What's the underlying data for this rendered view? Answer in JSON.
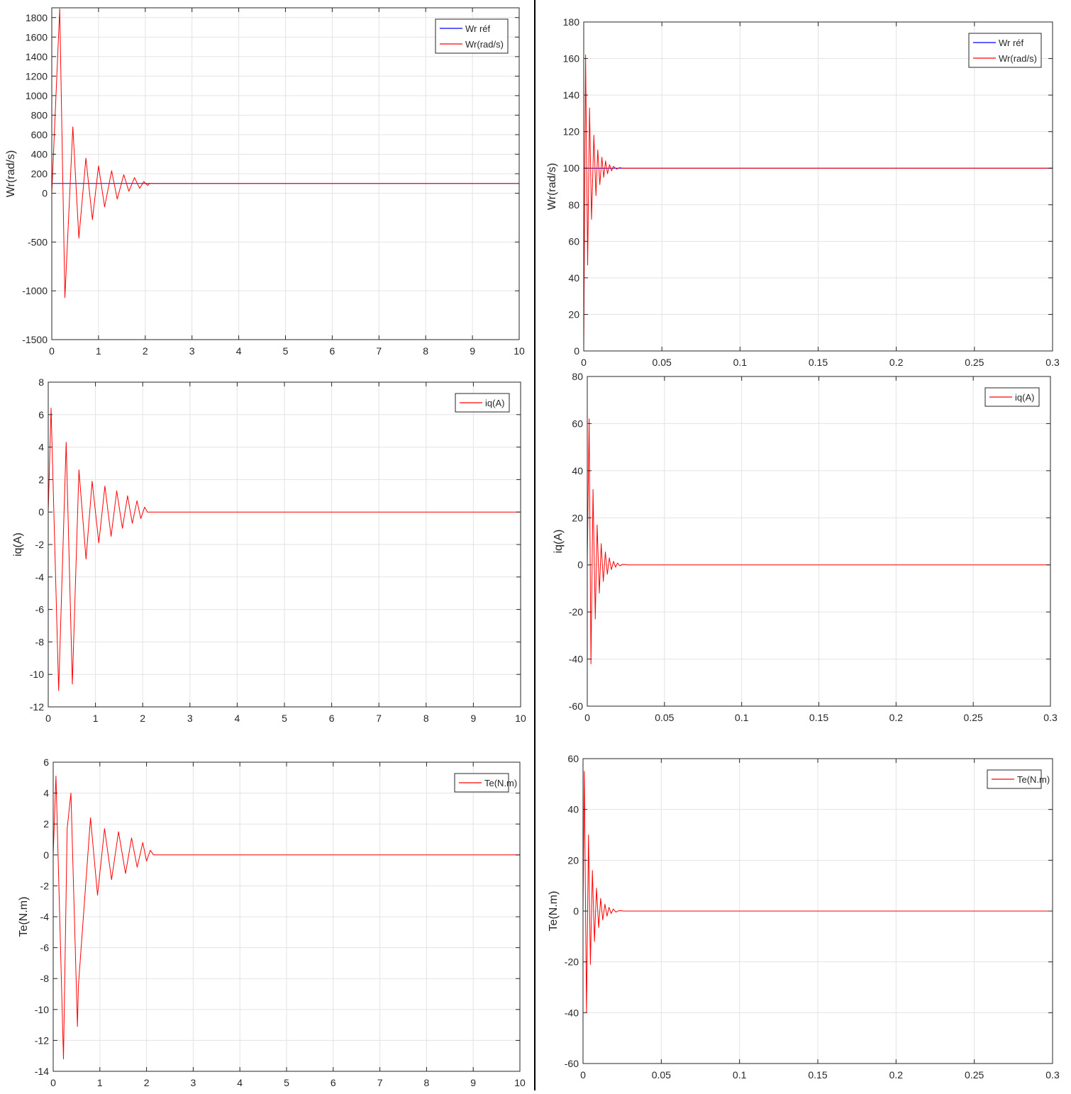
{
  "chart_data": [
    {
      "type": "line",
      "panel": "top-left",
      "ylabel": "Wr(rad/s)",
      "xlabel": "",
      "xlim": [
        0,
        10
      ],
      "ylim": [
        -1500,
        1900
      ],
      "xticks": [
        0,
        1,
        2,
        3,
        4,
        5,
        6,
        7,
        8,
        9,
        10
      ],
      "xtick_labels": [
        "0",
        "1",
        "2",
        "3",
        "4",
        "5",
        "6",
        "7",
        "8",
        "9",
        "10"
      ],
      "yticks": [
        -1500,
        -1000,
        -500,
        0,
        200,
        400,
        600,
        800,
        1000,
        1200,
        1400,
        1600,
        1800
      ],
      "ytick_labels": [
        "-1500",
        "-1000",
        "-500",
        "0",
        "200",
        "400",
        "600",
        "800",
        "1000",
        "1200",
        "1400",
        "1600",
        "1800"
      ],
      "grid": true,
      "legend_position": "top-right",
      "series": [
        {
          "name": "Wr réf",
          "color": "#0000ff",
          "x": [
            0,
            10
          ],
          "y": [
            100,
            100
          ]
        },
        {
          "name": "Wr(rad/s)",
          "color": "#ff0000",
          "x": [
            0,
            0.17,
            0.28,
            0.45,
            0.58,
            0.73,
            0.87,
            1.0,
            1.13,
            1.28,
            1.4,
            1.54,
            1.65,
            1.77,
            1.88,
            1.97,
            2.05,
            2.1,
            10
          ],
          "y": [
            0,
            1890,
            -1070,
            680,
            -460,
            360,
            -270,
            280,
            -140,
            230,
            -60,
            190,
            20,
            160,
            50,
            120,
            80,
            100,
            100
          ]
        }
      ]
    },
    {
      "type": "line",
      "panel": "top-right",
      "ylabel": "Wr(rad/s)",
      "xlabel": "",
      "xlim": [
        0,
        0.3
      ],
      "ylim": [
        0,
        180
      ],
      "xticks": [
        0,
        0.05,
        0.1,
        0.15,
        0.2,
        0.25,
        0.3
      ],
      "xtick_labels": [
        "0",
        "0.05",
        "0.1",
        "0.15",
        "0.2",
        "0.25",
        "0.3"
      ],
      "yticks": [
        0,
        20,
        40,
        60,
        80,
        100,
        120,
        140,
        160,
        180
      ],
      "ytick_labels": [
        "0",
        "20",
        "40",
        "60",
        "80",
        "100",
        "120",
        "140",
        "160",
        "180"
      ],
      "grid": true,
      "legend_position": "top-right",
      "series": [
        {
          "name": "Wr réf",
          "color": "#0000ff",
          "x": [
            0,
            0.3
          ],
          "y": [
            100,
            100
          ]
        },
        {
          "name": "Wr(rad/s)",
          "color": "#ff0000",
          "x": [
            0,
            0.0012,
            0.0025,
            0.0037,
            0.005,
            0.0065,
            0.0078,
            0.009,
            0.0103,
            0.0116,
            0.0128,
            0.014,
            0.0152,
            0.0165,
            0.0178,
            0.019,
            0.021,
            0.023,
            0.025,
            0.3
          ],
          "y": [
            0,
            162,
            47,
            133,
            72,
            118,
            85,
            110,
            91,
            106,
            95,
            104,
            97,
            102,
            98.5,
            101,
            99.5,
            100.3,
            100,
            100
          ]
        }
      ]
    },
    {
      "type": "line",
      "panel": "middle-left",
      "ylabel": "iq(A)",
      "xlabel": "",
      "xlim": [
        0,
        10
      ],
      "ylim": [
        -12,
        8
      ],
      "xticks": [
        0,
        1,
        2,
        3,
        4,
        5,
        6,
        7,
        8,
        9,
        10
      ],
      "xtick_labels": [
        "0",
        "1",
        "2",
        "3",
        "4",
        "5",
        "6",
        "7",
        "8",
        "9",
        "10"
      ],
      "yticks": [
        -12,
        -10,
        -8,
        -6,
        -4,
        -2,
        0,
        2,
        4,
        6,
        8
      ],
      "ytick_labels": [
        "-12",
        "-10",
        "-8",
        "-6",
        "-4",
        "-2",
        "0",
        "2",
        "4",
        "6",
        "8"
      ],
      "grid": true,
      "legend_position": "top-right",
      "series": [
        {
          "name": "iq(A)",
          "color": "#ff0000",
          "x": [
            0,
            0.06,
            0.22,
            0.38,
            0.51,
            0.65,
            0.8,
            0.93,
            1.07,
            1.2,
            1.33,
            1.45,
            1.57,
            1.68,
            1.78,
            1.88,
            1.96,
            2.04,
            2.1,
            10
          ],
          "y": [
            0,
            6.4,
            -11,
            4.3,
            -10.6,
            2.6,
            -2.9,
            1.9,
            -1.9,
            1.6,
            -1.5,
            1.3,
            -1.0,
            1.0,
            -0.7,
            0.7,
            -0.4,
            0.3,
            0,
            0
          ]
        }
      ]
    },
    {
      "type": "line",
      "panel": "middle-right",
      "ylabel": "iq(A)",
      "xlabel": "",
      "xlim": [
        0,
        0.3
      ],
      "ylim": [
        -60,
        80
      ],
      "xticks": [
        0,
        0.05,
        0.1,
        0.15,
        0.2,
        0.25,
        0.3
      ],
      "xtick_labels": [
        "0",
        "0.05",
        "0.1",
        "0.15",
        "0.2",
        "0.25",
        "0.3"
      ],
      "yticks": [
        -60,
        -40,
        -20,
        0,
        20,
        40,
        60,
        80
      ],
      "ytick_labels": [
        "-60",
        "-40",
        "-20",
        "0",
        "20",
        "40",
        "60",
        "80"
      ],
      "grid": true,
      "legend_position": "top-right",
      "series": [
        {
          "name": "iq(A)",
          "color": "#ff0000",
          "x": [
            0,
            0.0012,
            0.0024,
            0.0037,
            0.0052,
            0.0064,
            0.0078,
            0.009,
            0.0104,
            0.0117,
            0.013,
            0.0143,
            0.0156,
            0.017,
            0.0183,
            0.0196,
            0.021,
            0.023,
            0.026,
            0.3
          ],
          "y": [
            0,
            62,
            -42,
            32,
            -23,
            17,
            -12,
            9,
            -7,
            5.5,
            -4,
            3,
            -2,
            1.5,
            -1,
            0.8,
            -0.4,
            0.2,
            0,
            0
          ]
        }
      ]
    },
    {
      "type": "line",
      "panel": "bottom-left",
      "ylabel": "Te(N.m)",
      "xlabel": "",
      "xlim": [
        0,
        10
      ],
      "ylim": [
        -14,
        6
      ],
      "xticks": [
        0,
        1,
        2,
        3,
        4,
        5,
        6,
        7,
        8,
        9,
        10
      ],
      "xtick_labels": [
        "0",
        "1",
        "2",
        "3",
        "4",
        "5",
        "6",
        "7",
        "8",
        "9",
        "10"
      ],
      "yticks": [
        -14,
        -12,
        -10,
        -8,
        -6,
        -4,
        -2,
        0,
        2,
        4,
        6
      ],
      "ytick_labels": [
        "-14",
        "-12",
        "-10",
        "-8",
        "-6",
        "-4",
        "-2",
        "0",
        "2",
        "4",
        "6"
      ],
      "grid": true,
      "legend_position": "top-right",
      "series": [
        {
          "name": "Te(N.m)",
          "color": "#ff0000",
          "x": [
            0,
            0.06,
            0.22,
            0.3,
            0.38,
            0.52,
            0.54,
            0.8,
            0.95,
            1.1,
            1.25,
            1.4,
            1.55,
            1.68,
            1.8,
            1.92,
            2.0,
            2.08,
            2.15,
            10
          ],
          "y": [
            0,
            5.1,
            -13.2,
            1.7,
            4.0,
            -11.1,
            -8.5,
            2.4,
            -2.6,
            1.7,
            -1.6,
            1.5,
            -1.2,
            1.1,
            -0.8,
            0.8,
            -0.4,
            0.3,
            0,
            0
          ]
        }
      ]
    },
    {
      "type": "line",
      "panel": "bottom-right",
      "ylabel": "Te(N.m)",
      "xlabel": "",
      "xlim": [
        0,
        0.3
      ],
      "ylim": [
        -60,
        60
      ],
      "xticks": [
        0,
        0.05,
        0.1,
        0.15,
        0.2,
        0.25,
        0.3
      ],
      "xtick_labels": [
        "0",
        "0.05",
        "0.1",
        "0.15",
        "0.2",
        "0.25",
        "0.3"
      ],
      "yticks": [
        -60,
        -40,
        -20,
        0,
        20,
        40,
        60
      ],
      "ytick_labels": [
        "-60",
        "-40",
        "-20",
        "0",
        "20",
        "40",
        "60"
      ],
      "grid": true,
      "legend_position": "top-right",
      "series": [
        {
          "name": "Te(N.m)",
          "color": "#ff0000",
          "x": [
            0,
            0.0008,
            0.0022,
            0.0035,
            0.0047,
            0.006,
            0.0073,
            0.0086,
            0.01,
            0.0113,
            0.0126,
            0.014,
            0.0153,
            0.0166,
            0.018,
            0.0193,
            0.021,
            0.023,
            0.026,
            0.3
          ],
          "y": [
            0,
            55,
            -40,
            30,
            -21,
            16,
            -12,
            9,
            -6.5,
            5,
            -3.5,
            2.7,
            -2,
            1.5,
            -1,
            0.8,
            -0.4,
            0.2,
            0,
            0
          ]
        }
      ]
    }
  ]
}
